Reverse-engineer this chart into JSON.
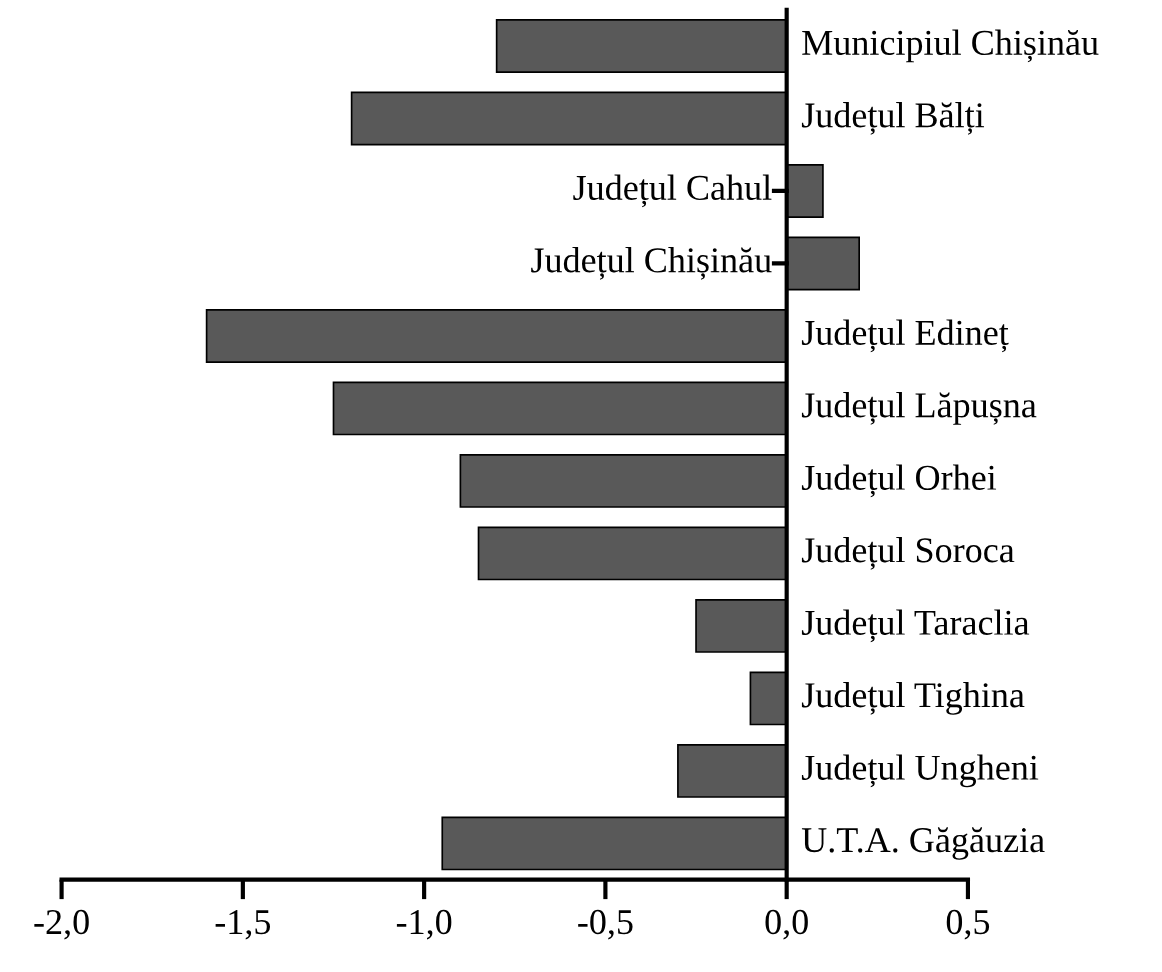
{
  "chart_data": {
    "type": "bar",
    "orientation": "horizontal",
    "categories": [
      "Municipiul Chișinău",
      "Județul Bălți",
      "Județul Cahul",
      "Județul Chișinău",
      "Județul Edineț",
      "Județul Lăpușna",
      "Județul Orhei",
      "Județul Soroca",
      "Județul Taraclia",
      "Județul Tighina",
      "Județul Ungheni",
      "U.T.A. Găgăuzia"
    ],
    "values": [
      -0.8,
      -1.2,
      0.1,
      0.2,
      -1.6,
      -1.25,
      -0.9,
      -0.85,
      -0.25,
      -0.1,
      -0.3,
      -0.95
    ],
    "color": "#595959",
    "xlim": [
      -2.0,
      0.5
    ],
    "xticks": [
      {
        "value": -2.0,
        "label": "-2,0"
      },
      {
        "value": -1.5,
        "label": "-1,5"
      },
      {
        "value": -1.0,
        "label": "-1,0"
      },
      {
        "value": -0.5,
        "label": "-0,5"
      },
      {
        "value": 0.0,
        "label": "0,0"
      },
      {
        "value": 0.5,
        "label": "0,5"
      }
    ],
    "grid": false
  }
}
